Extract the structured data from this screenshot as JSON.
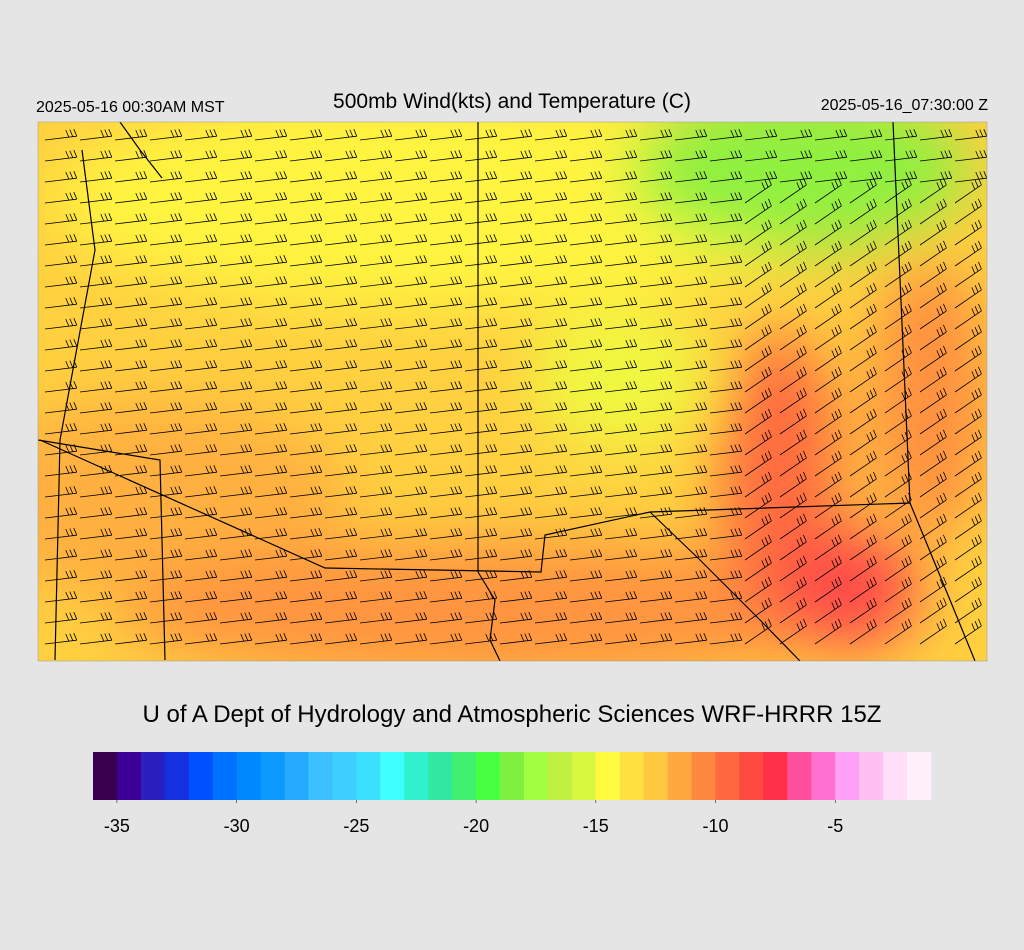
{
  "header": {
    "left": "2025-05-16 00:30AM MST",
    "title": "500mb Wind(kts) and Temperature (C)",
    "right": "2025-05-16_07:30:00 Z"
  },
  "credit": "U of A Dept of Hydrology and Atmospheric Sciences WRF-HRRR 15Z",
  "colorbar": {
    "lim": [
      -36,
      -1
    ],
    "ticks": [
      -35,
      -30,
      -25,
      -20,
      -15,
      -10,
      -5
    ],
    "colors": [
      "#3a0050",
      "#3c0096",
      "#2a1fbf",
      "#1530e0",
      "#0050ff",
      "#0070ff",
      "#0088ff",
      "#0a9aff",
      "#24aaff",
      "#3cc0ff",
      "#3ccfff",
      "#3ce0ff",
      "#40ffff",
      "#30f0d0",
      "#30e8a0",
      "#40f070",
      "#48ff40",
      "#80f040",
      "#a0ff40",
      "#c0f040",
      "#d8f840",
      "#fffc40",
      "#ffe040",
      "#ffc840",
      "#ffa840",
      "#ff8840",
      "#ff6840",
      "#ff4840",
      "#ff3048",
      "#ff50a0",
      "#ff70d0",
      "#ffa0f8",
      "#ffc0f0",
      "#ffe0f8",
      "#fff0fc"
    ]
  }
}
